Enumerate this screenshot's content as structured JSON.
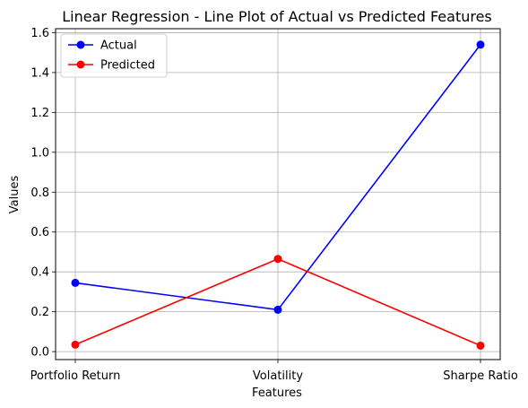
{
  "chart_data": {
    "type": "line",
    "title": "Linear Regression - Line Plot of Actual vs Predicted Features",
    "xlabel": "Features",
    "ylabel": "Values",
    "categories": [
      "Portfolio Return",
      "Volatility",
      "Sharpe Ratio"
    ],
    "ylim": [
      -0.04,
      1.62
    ],
    "yticks": [
      "0.0",
      "0.2",
      "0.4",
      "0.6",
      "0.8",
      "1.0",
      "1.2",
      "1.4",
      "1.6"
    ],
    "grid": true,
    "legend_position": "top-left",
    "series": [
      {
        "name": "Actual",
        "color": "#0000ff",
        "marker": "circle",
        "values": [
          0.345,
          0.21,
          1.54
        ]
      },
      {
        "name": "Predicted",
        "color": "#ff0000",
        "marker": "circle",
        "values": [
          0.035,
          0.465,
          0.03
        ]
      }
    ]
  }
}
